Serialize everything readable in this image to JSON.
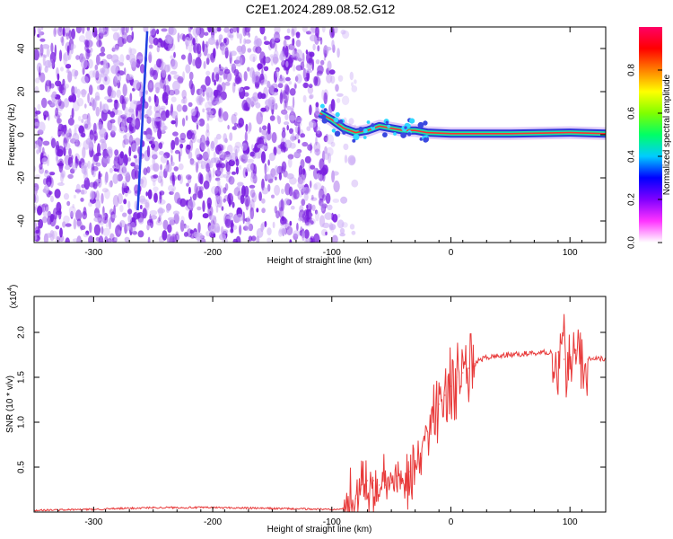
{
  "title": "C2E1.2024.289.08.52.G12",
  "colors": {
    "snr_line": "#e83a3a",
    "spectrogram_fill": "#7a1fe0",
    "colorbar": [
      "#ffffff",
      "#ff33ff",
      "#8000ff",
      "#0000ff",
      "#00ccff",
      "#00ff66",
      "#80ff00",
      "#ffff00",
      "#ff8000",
      "#ff0000",
      "#ff0066"
    ]
  },
  "chart_data": [
    {
      "type": "heatmap",
      "title": "C2E1.2024.289.08.52.G12",
      "xlabel": "Height of straight line (km)",
      "ylabel": "Frequency (Hz)",
      "xlim": [
        -350,
        130
      ],
      "ylim": [
        -50,
        50
      ],
      "x_ticks": [
        -300,
        -200,
        -100,
        0,
        100
      ],
      "y_ticks": [
        -40,
        -20,
        0,
        20,
        40
      ],
      "colorbar": {
        "label": "Normalized spectral amplitude",
        "range": [
          0,
          1
        ],
        "ticks": [
          0.0,
          0.2,
          0.4,
          0.6,
          0.8
        ]
      },
      "features": {
        "noise_region_x": [
          -350,
          -95
        ],
        "tracked_signal": [
          {
            "x": -110,
            "y": 10
          },
          {
            "x": -100,
            "y": 7
          },
          {
            "x": -90,
            "y": 3
          },
          {
            "x": -80,
            "y": 1
          },
          {
            "x": -70,
            "y": 2
          },
          {
            "x": -60,
            "y": 4
          },
          {
            "x": -50,
            "y": 3
          },
          {
            "x": -40,
            "y": 2
          },
          {
            "x": -30,
            "y": 2
          },
          {
            "x": -20,
            "y": 1
          },
          {
            "x": 0,
            "y": 0.5
          },
          {
            "x": 50,
            "y": 0.5
          },
          {
            "x": 100,
            "y": 1
          },
          {
            "x": 130,
            "y": 0.5
          }
        ],
        "steep_line": [
          {
            "x": -255,
            "y": 48
          },
          {
            "x": -263,
            "y": -35
          }
        ]
      }
    },
    {
      "type": "line",
      "xlabel": "Height of straight line (km)",
      "ylabel": "SNR (10 * v/v)",
      "y_multiplier": "(x10",
      "y_multiplier_exp": "4",
      "y_multiplier_close": ")",
      "xlim": [
        -350,
        130
      ],
      "ylim": [
        0,
        2.4
      ],
      "x_ticks": [
        -300,
        -200,
        -100,
        0,
        100
      ],
      "y_ticks": [
        0.5,
        1.0,
        1.5,
        2.0
      ],
      "y_tick_labels": [
        "0.5",
        "1.0",
        "1.5",
        "2.0"
      ],
      "series": [
        {
          "x": [
            -350,
            -300,
            -250,
            -200,
            -150,
            -100,
            -85,
            -80,
            -75,
            -70,
            -65,
            -60,
            -55,
            -50,
            -45,
            -40,
            -35,
            -30,
            -25,
            -20,
            -15,
            -10,
            -5,
            0,
            5,
            10,
            15,
            20,
            25,
            30,
            40,
            50,
            60,
            70,
            80,
            90,
            95,
            100,
            105,
            110,
            115,
            120,
            130
          ],
          "y": [
            0.02,
            0.03,
            0.05,
            0.05,
            0.04,
            0.03,
            0.05,
            0.15,
            0.3,
            0.35,
            0.35,
            0.3,
            0.3,
            0.32,
            0.4,
            0.35,
            0.45,
            0.5,
            0.6,
            0.9,
            1.1,
            1.2,
            1.3,
            1.4,
            1.5,
            1.55,
            1.6,
            1.65,
            1.7,
            1.72,
            1.74,
            1.75,
            1.76,
            1.77,
            1.78,
            1.78,
            1.7,
            1.75,
            1.8,
            1.75,
            1.7,
            1.72,
            1.7
          ]
        }
      ]
    }
  ]
}
